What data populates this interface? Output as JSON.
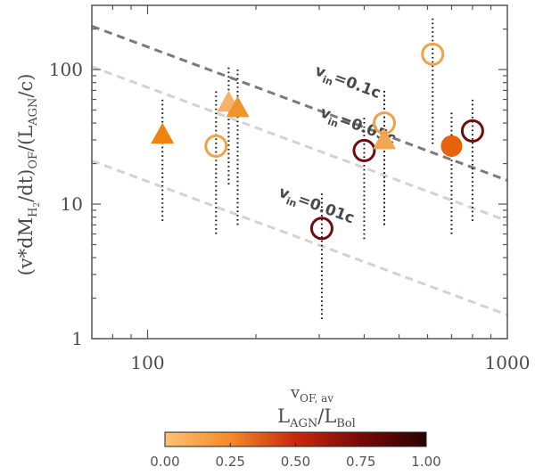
{
  "chart_data": {
    "type": "scatter",
    "xscale": "log",
    "yscale": "log",
    "xlim": [
      70,
      1000
    ],
    "ylim": [
      1,
      300
    ],
    "xticks": [
      100,
      1000
    ],
    "xticklabels": [
      "100",
      "1000"
    ],
    "yticks": [
      1,
      10,
      100
    ],
    "yticklabels": [
      "1",
      "10",
      "100"
    ],
    "xlabel": "v_OF, av",
    "ylabel": "(v*dM_H2/dt)_OF / (L_AGN/c)",
    "grid": false,
    "colors": {
      "light": "#f6b26b",
      "mid": "#f0932b",
      "orange": "#e8620c",
      "dark": "#6e0d0d",
      "line_dark": "#7a7a7a",
      "line_light": "#d8d0d0"
    },
    "reference_lines": [
      {
        "label": "v_in=0.1c",
        "line_points": [
          [
            70,
            210
          ],
          [
            1000,
            15
          ]
        ],
        "style": "dark"
      },
      {
        "label": "v_in=0.05c",
        "line_points": [
          [
            70,
            105
          ],
          [
            1000,
            7.5
          ]
        ],
        "style": "light"
      },
      {
        "label": "v_in=0.01c",
        "line_points": [
          [
            70,
            21
          ],
          [
            1000,
            1.5
          ]
        ],
        "style": "light"
      }
    ],
    "annotation_points": [
      [
        290,
        92
      ],
      [
        300,
        45
      ],
      [
        230,
        11.5
      ]
    ],
    "points": [
      {
        "x": 110,
        "y": 33,
        "marker": "triangle",
        "filled": true,
        "color": "#f0820f",
        "err": [
          7.5,
          60
        ]
      },
      {
        "x": 155,
        "y": 27,
        "marker": "circle",
        "filled": false,
        "color": "#f2a246",
        "err": [
          6,
          70
        ]
      },
      {
        "x": 168,
        "y": 57,
        "marker": "triangle",
        "filled": true,
        "color": "#f6b26b",
        "err": [
          14,
          105
        ]
      },
      {
        "x": 178,
        "y": 52,
        "marker": "triangle",
        "filled": true,
        "color": "#f0932b",
        "err": [
          7,
          100
        ]
      },
      {
        "x": 305,
        "y": 6.6,
        "marker": "circle",
        "filled": false,
        "color": "#6e0d0d",
        "err": [
          1.4,
          12
        ]
      },
      {
        "x": 400,
        "y": 25,
        "marker": "circle",
        "filled": false,
        "color": "#6e0d0d",
        "err": [
          5.5,
          45
        ]
      },
      {
        "x": 455,
        "y": 30,
        "marker": "triangle",
        "filled": true,
        "color": "#f3a552",
        "err": [
          7,
          70
        ]
      },
      {
        "x": 455,
        "y": 40,
        "marker": "circle",
        "filled": false,
        "color": "#f2a246",
        "err": [
          7,
          70
        ]
      },
      {
        "x": 620,
        "y": 130,
        "marker": "circle",
        "filled": false,
        "color": "#f2a246",
        "err": [
          28,
          240
        ]
      },
      {
        "x": 700,
        "y": 27,
        "marker": "circle",
        "filled": true,
        "color": "#e8620c",
        "err": [
          6,
          48
        ]
      },
      {
        "x": 800,
        "y": 35,
        "marker": "circle",
        "filled": false,
        "color": "#6e0d0d",
        "err": [
          7.5,
          62
        ]
      }
    ],
    "colorbar": {
      "title": "L_AGN / L_Bol",
      "ticks": [
        0.0,
        0.25,
        0.5,
        0.75,
        1.0
      ],
      "ticklabels": [
        "0.00",
        "0.25",
        "0.50",
        "0.75",
        "1.00"
      ],
      "gradient": [
        "#fdc274",
        "#f48a2a",
        "#c9280d",
        "#7a0808",
        "#2b0202"
      ]
    }
  }
}
